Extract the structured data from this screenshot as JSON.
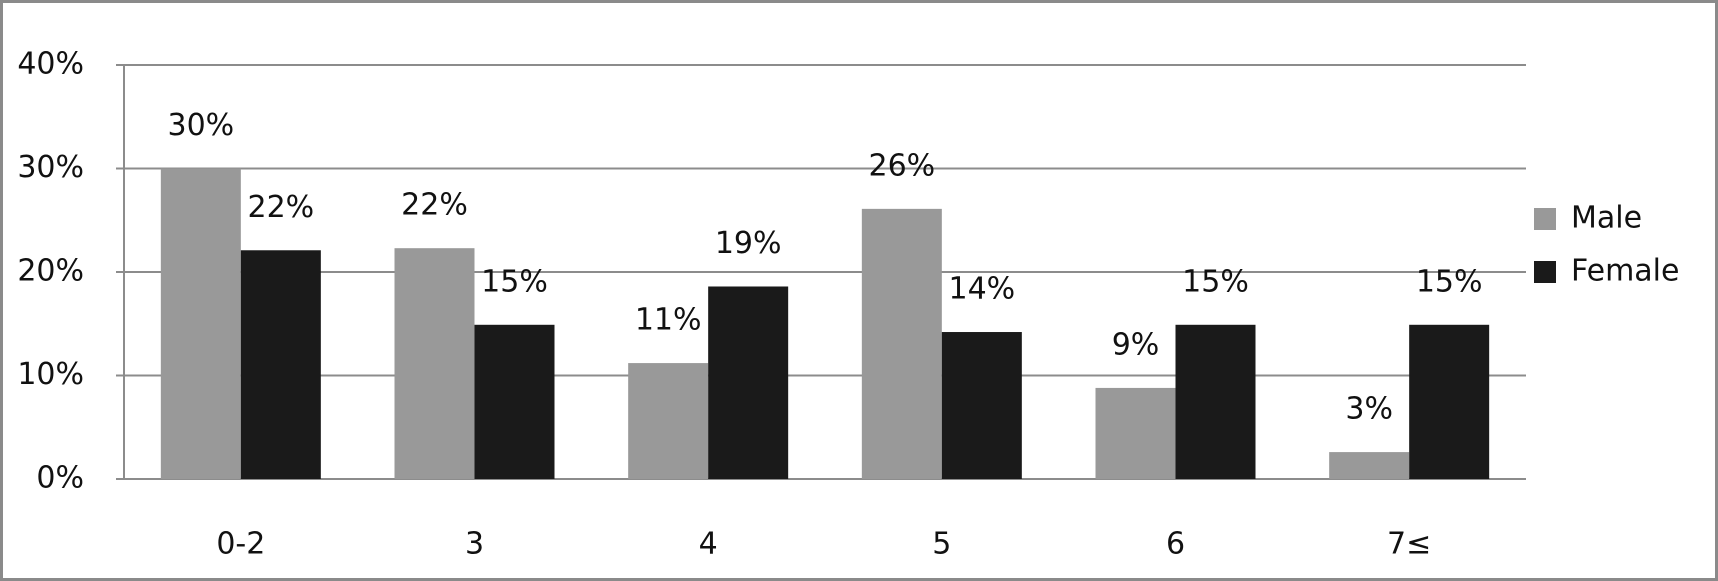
{
  "chart_data": {
    "type": "bar",
    "categories": [
      "0-2",
      "3",
      "4",
      "5",
      "6",
      "7≤"
    ],
    "series": [
      {
        "name": "Male",
        "color": "#999999",
        "values": [
          30,
          22.3,
          11.2,
          26.1,
          8.8,
          2.6
        ],
        "value_labels": [
          "30%",
          "22%",
          "11%",
          "26%",
          "9%",
          "3%"
        ]
      },
      {
        "name": "Female",
        "color": "#1a1a1a",
        "values": [
          22.1,
          14.9,
          18.6,
          14.2,
          14.9,
          14.9
        ],
        "value_labels": [
          "22%",
          "15%",
          "19%",
          "14%",
          "15%",
          "15%"
        ]
      }
    ],
    "ylim": [
      0,
      40
    ],
    "yticks": [
      {
        "value": 0,
        "label": "0%"
      },
      {
        "value": 10,
        "label": "10%"
      },
      {
        "value": 20,
        "label": "20%"
      },
      {
        "value": 30,
        "label": "30%"
      },
      {
        "value": 40,
        "label": "40%"
      }
    ],
    "grid": true,
    "legend": "right"
  }
}
